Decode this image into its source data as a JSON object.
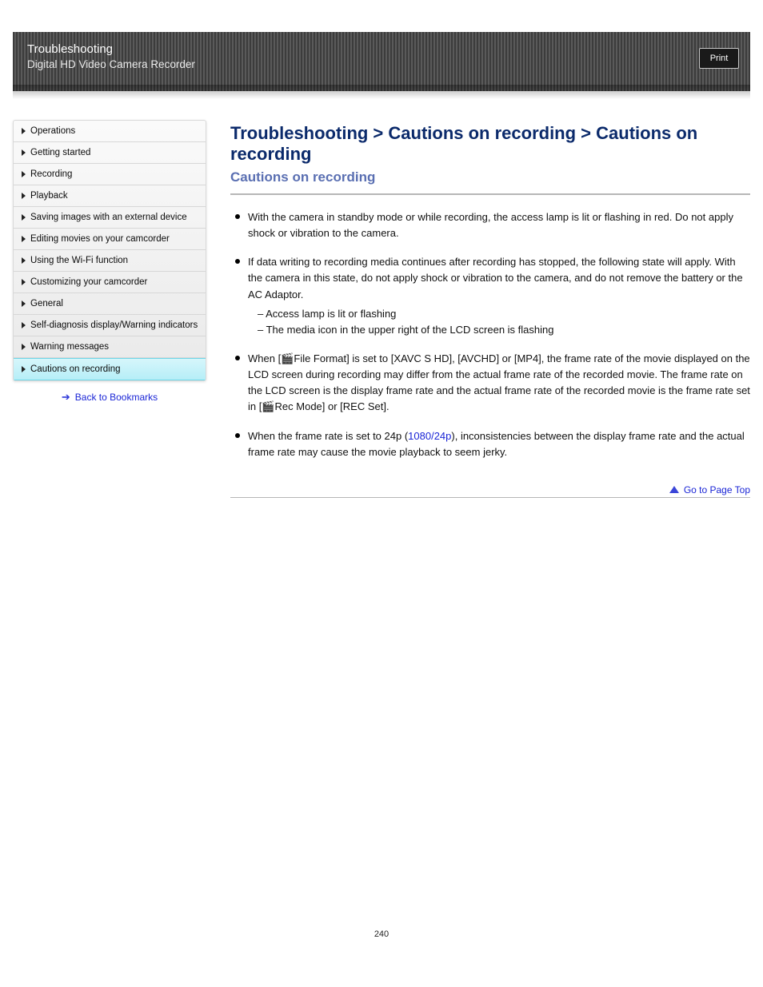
{
  "banner": {
    "title": "Troubleshooting",
    "subtitle": "Digital HD Video Camera Recorder",
    "button": "Print"
  },
  "sidebar": {
    "items": [
      {
        "label": "Operations",
        "active": false
      },
      {
        "label": "Getting started",
        "active": false
      },
      {
        "label": "Recording",
        "active": false
      },
      {
        "label": "Playback",
        "active": false
      },
      {
        "label": "Saving images with an external device",
        "active": false
      },
      {
        "label": "Editing movies on your camcorder",
        "active": false
      },
      {
        "label": "Using the Wi-Fi function",
        "active": false
      },
      {
        "label": "Customizing your camcorder",
        "active": false
      },
      {
        "label": "General",
        "active": false
      },
      {
        "label": "Self-diagnosis display/Warning indicators",
        "active": false
      },
      {
        "label": "Warning messages",
        "active": false
      },
      {
        "label": "Cautions on recording",
        "active": true
      }
    ],
    "bookmarks": "Back to Bookmarks"
  },
  "content": {
    "breadcrumb": "Troubleshooting > Cautions on recording > Cautions on recording",
    "heading": "Cautions on recording",
    "bullets": [
      "With the camera in standby mode or while recording, the access lamp is lit or flashing in red. Do not apply shock or vibration to the camera.",
      {
        "prefix": "If data writing to recording media continues after recording has stopped, the following state will apply. With the camera in this state, do not apply shock or vibration to the camera, and do not remove the battery or the AC Adaptor. ",
        "sub": [
          "Access lamp is lit or flashing",
          "The media icon in the upper right of the LCD screen is flashing"
        ]
      },
      {
        "prefix": "When [",
        "iconName": "movie-icon",
        "iconGlyph": "🎬",
        "rest": "File Format] is set to [XAVC S HD], [AVCHD] or [MP4], the frame rate of the movie displayed on the LCD screen during recording may differ from the actual frame rate of the recorded movie. The frame rate on the LCD screen is the display frame rate and the actual frame rate of the recorded movie is the frame rate set in [",
        "iconName2": "movie-icon",
        "iconGlyph2": "🎬",
        "rest2": "Rec Mode] or [REC Set]."
      },
      {
        "prefix": "When the frame rate is set to 24p (",
        "mid": "1080/24p",
        "rest": "), inconsistencies between the display frame rate and the actual frame rate may cause the movie playback to seem jerky."
      }
    ]
  },
  "footer": {
    "goTop": "Go to Page Top",
    "pageNumber": "240"
  },
  "colors": {
    "heading": "#0b2a6b",
    "subheading": "#5a6fb2",
    "link": "#1a25d6",
    "activeBg": "#c8f2fa"
  }
}
